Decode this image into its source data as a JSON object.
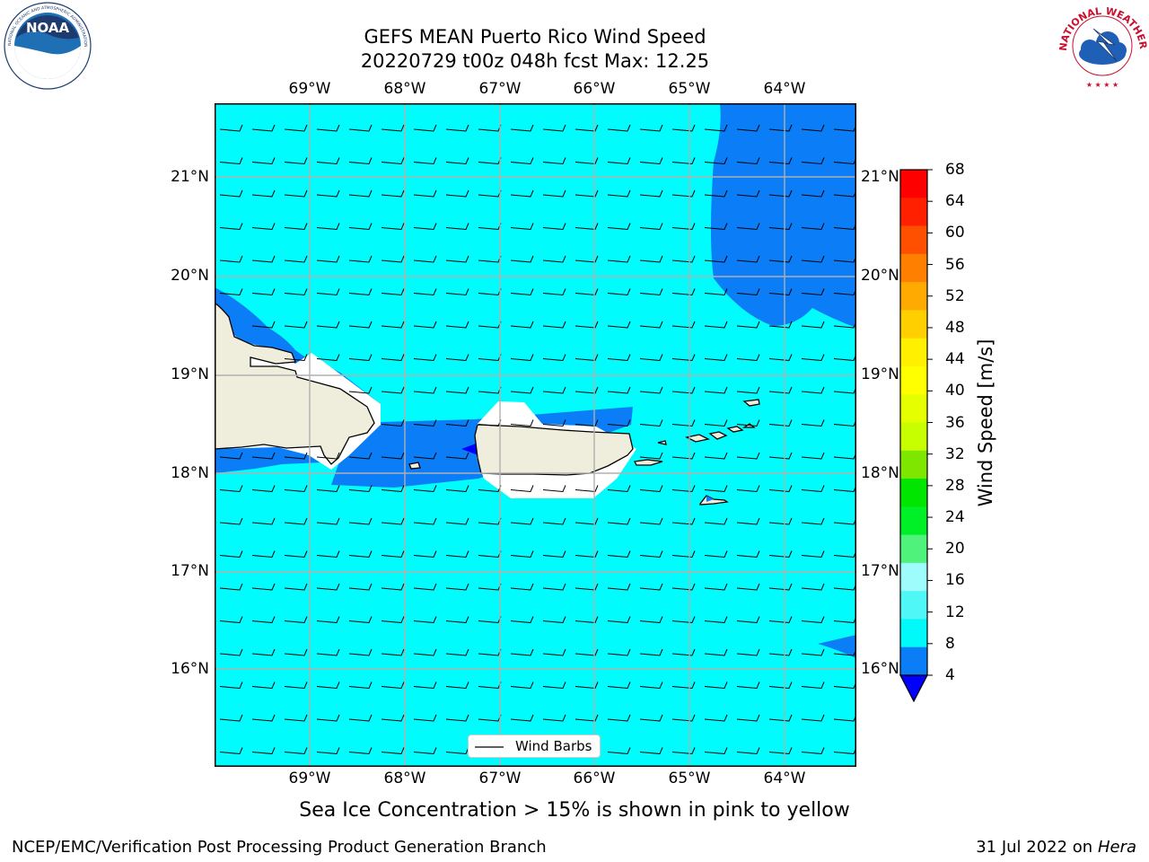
{
  "header": {
    "title_line1": "GEFS MEAN Puerto Rico Wind Speed",
    "title_line2": "20220729 t00z 048h fcst   Max: 12.25"
  },
  "logos": {
    "noaa_text": "NOAA",
    "noaa_ring_text": "NATIONAL OCEANIC AND ATMOSPHERIC ADMINISTRATION · U.S. DEPARTMENT OF COMMERCE",
    "nws_ring_text": "NATIONAL WEATHER SERVICE"
  },
  "map": {
    "lon_labels": [
      "69°W",
      "68°W",
      "67°W",
      "66°W",
      "65°W",
      "64°W"
    ],
    "lat_labels": [
      "21°N",
      "20°N",
      "19°N",
      "18°N",
      "17°N",
      "16°N"
    ],
    "legend_label": "Wind Barbs",
    "colors": {
      "band_4_8": "#0a7df7",
      "band_8_12": "#00fcfc",
      "below_4": "#0000fb",
      "land": "#efeddc"
    }
  },
  "colorbar": {
    "label": "Wind Speed [m/s]",
    "ticks": [
      "68",
      "64",
      "60",
      "56",
      "52",
      "48",
      "44",
      "40",
      "36",
      "32",
      "28",
      "24",
      "20",
      "16",
      "12",
      "8",
      "4"
    ],
    "colors_top_to_bottom": [
      "#ff0000",
      "#ff2000",
      "#ff5000",
      "#ff7f00",
      "#ffaa00",
      "#ffcf00",
      "#fff000",
      "#ffff00",
      "#e6ff00",
      "#c8ff00",
      "#7fe600",
      "#00e600",
      "#00f028",
      "#4ff27a",
      "#9ffcfc",
      "#4ff7f7",
      "#00fafa",
      "#0a7df7"
    ],
    "extend_color": "#0000fb"
  },
  "note": "Sea Ice Concentration > 15% is shown in pink to yellow",
  "footer": {
    "left": "NCEP/EMC/Verification Post Processing Product Generation Branch",
    "date": "31 Jul 2022 on ",
    "machine": "Hera"
  }
}
